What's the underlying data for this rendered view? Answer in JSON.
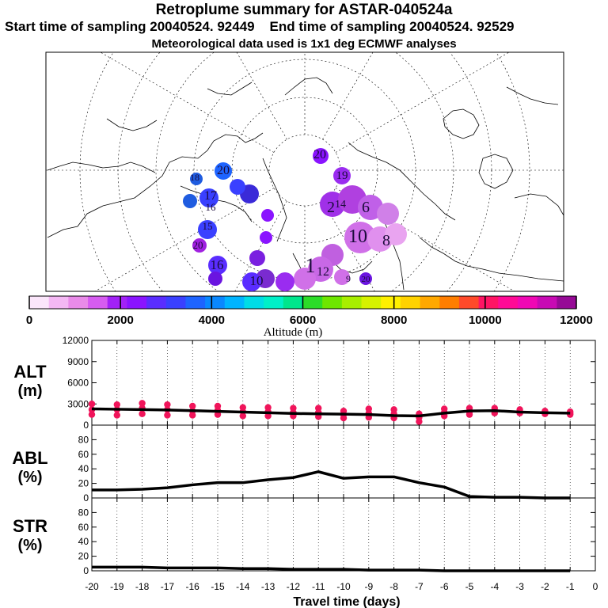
{
  "titles": {
    "main": "Retroplume summary for ASTAR-040524a",
    "start": "Start time of sampling 20040524. 92449",
    "end": "End time of sampling 20040524. 92529",
    "met": "Meteorological data used is 1x1 deg ECMWF analyses"
  },
  "colorbar": {
    "label": "Altitude (m)",
    "ticks": [
      "0",
      "2000",
      "4000",
      "6000",
      "8000",
      "10000",
      "12000"
    ],
    "colors": [
      "#fbe6fb",
      "#f4b8f4",
      "#e98be9",
      "#d65cf0",
      "#a222f6",
      "#8a14ff",
      "#5a2dff",
      "#3a40ff",
      "#1e64ff",
      "#0a88ff",
      "#00b4ff",
      "#00dce6",
      "#00f0c8",
      "#00e68c",
      "#2cdc28",
      "#6ee600",
      "#a8ee00",
      "#d6f200",
      "#fff000",
      "#ffd200",
      "#ffa800",
      "#ff7e00",
      "#ff4a2a",
      "#ff1464",
      "#ff0a96",
      "#f008b4",
      "#c80ab4",
      "#960a96"
    ]
  },
  "map_labels": [
    {
      "t": "20",
      "c": "#7a2bd0"
    },
    {
      "t": "19",
      "c": "#8a2bd8"
    },
    {
      "t": "18",
      "c": "#1f5ce0"
    },
    {
      "t": "20",
      "c": "#1f5ce0"
    },
    {
      "t": "17",
      "c": "#3a2ad8"
    },
    {
      "t": "16",
      "c": "#1f5ce0"
    },
    {
      "t": "15",
      "c": "#3a2ad8"
    },
    {
      "t": "2",
      "c": "#6a14e0"
    },
    {
      "t": "14",
      "c": "#6a14e0"
    },
    {
      "t": "6",
      "c": "#9a3ae0"
    },
    {
      "t": "10",
      "c": "#c060e8"
    },
    {
      "t": "8",
      "c": "#c860e0"
    },
    {
      "t": "20",
      "c": "#a020e0"
    },
    {
      "t": "16",
      "c": "#3a40ff"
    },
    {
      "t": "1",
      "c": "#c060e0"
    },
    {
      "t": "12",
      "c": "#d070e8"
    },
    {
      "t": "10",
      "c": "#d878e8"
    },
    {
      "t": "20",
      "c": "#8a14ff"
    },
    {
      "t": "9",
      "c": "#a020e0"
    }
  ],
  "panels": {
    "alt": {
      "label": "ALT",
      "unit": "(m)"
    },
    "abl": {
      "label": "ABL",
      "unit": "(%)"
    },
    "str": {
      "label": "STR",
      "unit": "(%)"
    }
  },
  "xlabel": "Travel time (days)",
  "chart_data": [
    {
      "type": "line",
      "title": "ALT",
      "ylabel": "ALT (m)",
      "ylim": [
        0,
        12000
      ],
      "yticks": [
        0,
        3000,
        6000,
        9000,
        12000
      ],
      "x": [
        -20,
        -19,
        -18,
        -17,
        -16,
        -15,
        -14,
        -13,
        -12,
        -11,
        -10,
        -9,
        -8,
        -7,
        -6,
        -5,
        -4,
        -3,
        -2,
        -1
      ],
      "values": [
        2300,
        2250,
        2200,
        2150,
        2050,
        1950,
        1850,
        1750,
        1650,
        1600,
        1550,
        1500,
        1350,
        1300,
        1700,
        2000,
        2050,
        1850,
        1750,
        1700
      ],
      "scatter_spread": [
        [
          3000,
          2200,
          1500
        ],
        [
          2900,
          2200,
          1400
        ],
        [
          3100,
          2400,
          1600
        ],
        [
          2900,
          2200,
          1400
        ],
        [
          2700,
          2000,
          1400
        ],
        [
          2700,
          2100,
          1500
        ],
        [
          2500,
          1900,
          1300
        ],
        [
          2500,
          1900,
          1300
        ],
        [
          2400,
          1800,
          1300
        ],
        [
          2400,
          1800,
          1200
        ],
        [
          2000,
          1500,
          1000
        ],
        [
          2300,
          1700,
          1100
        ],
        [
          2200,
          1600,
          1000
        ],
        [
          1600,
          1100,
          500
        ],
        [
          2300,
          1800,
          1300
        ],
        [
          2400,
          1900,
          1500
        ],
        [
          2400,
          2000,
          1700
        ],
        [
          2200,
          1900,
          1700
        ],
        [
          2000,
          1800,
          1600
        ],
        [
          1900,
          1700,
          1500
        ]
      ],
      "xlim": [
        -20,
        0
      ]
    },
    {
      "type": "line",
      "title": "ABL",
      "ylabel": "ABL (%)",
      "ylim": [
        0,
        100
      ],
      "yticks": [
        0,
        20,
        40,
        60,
        80
      ],
      "x": [
        -20,
        -19,
        -18,
        -17,
        -16,
        -15,
        -14,
        -13,
        -12,
        -11,
        -10,
        -9,
        -8,
        -7,
        -6,
        -5,
        -4,
        -3,
        -2,
        -1
      ],
      "values": [
        11,
        11,
        12,
        14,
        18,
        21,
        21,
        25,
        28,
        36,
        27,
        29,
        29,
        21,
        15,
        2,
        1,
        1,
        0,
        0
      ],
      "xlim": [
        -20,
        0
      ]
    },
    {
      "type": "line",
      "title": "STR",
      "ylabel": "STR (%)",
      "ylim": [
        0,
        100
      ],
      "yticks": [
        0,
        20,
        40,
        60,
        80
      ],
      "x": [
        -20,
        -19,
        -18,
        -17,
        -16,
        -15,
        -14,
        -13,
        -12,
        -11,
        -10,
        -9,
        -8,
        -7,
        -6,
        -5,
        -4,
        -3,
        -2,
        -1
      ],
      "values": [
        5,
        5,
        5,
        4,
        4,
        4,
        3,
        3,
        2,
        2,
        2,
        1,
        1,
        1,
        0,
        0,
        0,
        0,
        0,
        0
      ],
      "xlim": [
        -20,
        0
      ],
      "xticks": [
        -20,
        -19,
        -18,
        -17,
        -16,
        -15,
        -14,
        -13,
        -12,
        -11,
        -10,
        -9,
        -8,
        -7,
        -6,
        -5,
        -4,
        -3,
        -2,
        -1,
        0
      ],
      "xticklabels": [
        "-20",
        "-19",
        "-18",
        "-17",
        "-16",
        "-15",
        "-14",
        "-13",
        "-12",
        "-11",
        "-10",
        "-9",
        "-8",
        "-7",
        "-6",
        "-5",
        "-4",
        "-3",
        "-2",
        "-1",
        "0"
      ]
    }
  ]
}
